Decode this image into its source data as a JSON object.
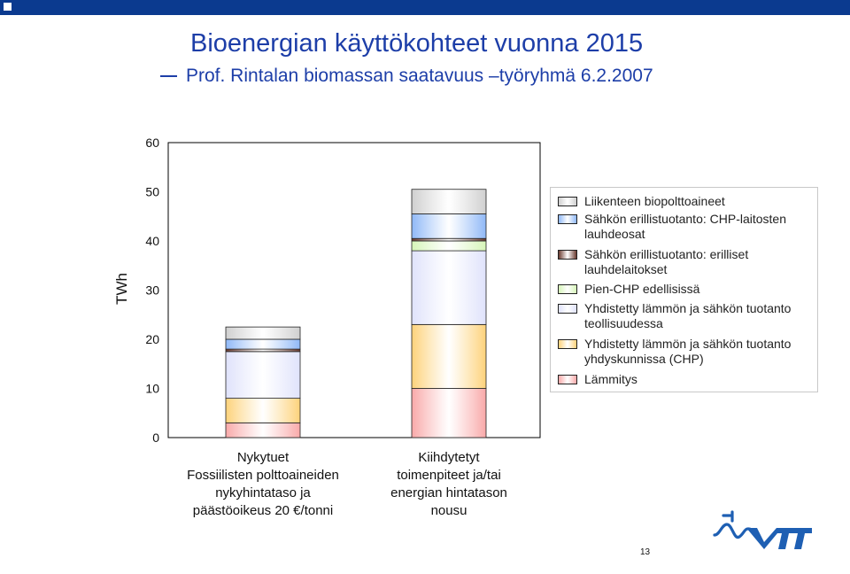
{
  "title": "Bioenergian käyttökohteet vuonna 2015",
  "subtitle": "Prof. Rintalan biomassan saatavuus –työryhmä 6.2.2007",
  "page_number": "13",
  "logo_text": "VTT",
  "colors": {
    "topbar": "#0b3a8f",
    "title": "#1d3ea8",
    "logo": "#1e5fb3"
  },
  "chart_data": {
    "type": "bar",
    "stacked": true,
    "ylabel": "TWh",
    "ylim": [
      0,
      60
    ],
    "yticks": [
      "0",
      "10",
      "20",
      "30",
      "40",
      "50",
      "60"
    ],
    "grid": false,
    "legend_position": "right",
    "categories": [
      [
        "Nykytuet",
        "Fossiilisten polttoaineiden",
        "nykyhintataso ja",
        "päästöoikeus 20 €/tonni"
      ],
      [
        "Kiihdytetyt",
        "toimenpiteet ja/tai",
        "energian hintatason",
        "nousu"
      ]
    ],
    "series": [
      {
        "name": "Lämmitys",
        "color": "#f9a9a9",
        "values": [
          3,
          10
        ]
      },
      {
        "name": "Yhdistetty lämmön ja sähkön tuotanto yhdyskunnissa (CHP)",
        "color": "#fdd27a",
        "values": [
          5,
          13
        ]
      },
      {
        "name": "Yhdistetty lämmön ja sähkön tuotanto teollisuudessa",
        "color": "#dfe2fb",
        "values": [
          9.5,
          15
        ]
      },
      {
        "name": "Pien-CHP edellisissä",
        "color": "#d6f5b8",
        "values": [
          0,
          2
        ]
      },
      {
        "name": "Sähkön erillistuotanto: erilliset lauhdelaitokset",
        "color": "#6b3b30",
        "values": [
          0.5,
          0.5
        ]
      },
      {
        "name": "Sähkön erillistuotanto: CHP-laitosten lauhdeosat",
        "color": "#8fb8f7",
        "values": [
          2,
          5
        ]
      },
      {
        "name": "Liikenteen biopolttoaineet",
        "color": "#cfcfcf",
        "values": [
          2.5,
          5
        ]
      }
    ],
    "legend": [
      {
        "label": "Liikenteen biopolttoaineet",
        "color": "#cfcfcf"
      },
      {
        "label": "Sähkön erillistuotanto: CHP-laitosten lauhdeosat",
        "color": "#8fb8f7"
      },
      {
        "label": "Sähkön erillistuotanto: erilliset lauhdelaitokset",
        "color": "#6b3b30"
      },
      {
        "label": "Pien-CHP edellisissä",
        "color": "#d6f5b8"
      },
      {
        "label": "Yhdistetty lämmön ja sähkön tuotanto teollisuudessa",
        "color": "#dfe2fb"
      },
      {
        "label": "Yhdistetty lämmön ja sähkön tuotanto yhdyskunnissa (CHP)",
        "color": "#fdd27a"
      },
      {
        "label": "Lämmitys",
        "color": "#f9a9a9"
      }
    ]
  }
}
